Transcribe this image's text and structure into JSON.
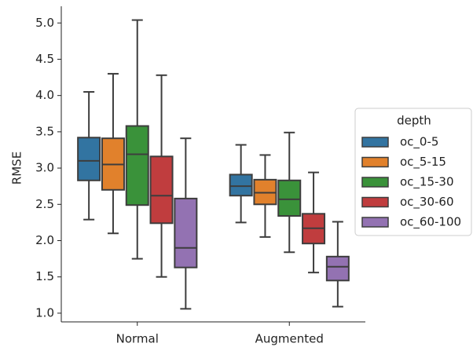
{
  "chart_data": {
    "type": "box",
    "y_label": "RMSE",
    "categories": [
      "Normal",
      "Augmented"
    ],
    "legend_title": "depth",
    "legend_position": "right",
    "ylim": [
      0.88,
      5.23
    ],
    "yticks": [
      {
        "value": 1,
        "label": "1.0"
      },
      1.5,
      {
        "value": 2,
        "label": "2.0"
      },
      2.5,
      {
        "value": 3,
        "label": "3.0"
      },
      3.5,
      {
        "value": 4,
        "label": "4.0"
      },
      4.5,
      {
        "value": 5,
        "label": "5.0"
      }
    ],
    "series": [
      {
        "name": "oc_0-5",
        "color": "#3274a1",
        "values": [
          [
            2.29,
            2.83,
            3.1,
            3.42,
            4.05
          ],
          [
            2.25,
            2.62,
            2.75,
            2.91,
            3.32
          ]
        ]
      },
      {
        "name": "oc_5-15",
        "color": "#e1812c",
        "values": [
          [
            2.1,
            2.7,
            3.05,
            3.41,
            4.3
          ],
          [
            2.05,
            2.5,
            2.66,
            2.84,
            3.18
          ]
        ]
      },
      {
        "name": "oc_15-30",
        "color": "#3a923a",
        "values": [
          [
            1.75,
            2.49,
            3.19,
            3.58,
            5.04
          ],
          [
            1.84,
            2.34,
            2.57,
            2.83,
            3.49
          ]
        ]
      },
      {
        "name": "oc_30-60",
        "color": "#c03d3e",
        "values": [
          [
            1.5,
            2.24,
            2.62,
            3.16,
            4.28
          ],
          [
            1.56,
            1.96,
            2.17,
            2.37,
            2.94
          ]
        ]
      },
      {
        "name": "oc_60-100",
        "color": "#9372b2",
        "values": [
          [
            1.06,
            1.63,
            1.9,
            2.58,
            3.41
          ],
          [
            1.09,
            1.45,
            1.64,
            1.78,
            2.26
          ]
        ]
      }
    ]
  }
}
